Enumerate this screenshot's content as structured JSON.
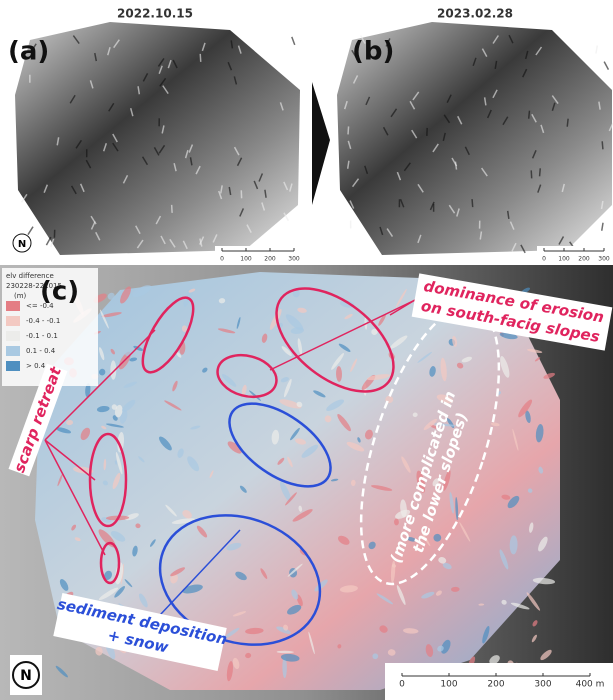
{
  "panels": [
    {
      "label": "(a)",
      "date": "2022.10.15",
      "north": "N",
      "scale": [
        "0",
        "100",
        "200",
        "300"
      ]
    },
    {
      "label": "(b)",
      "date": "2023.02.28",
      "scale": [
        "0",
        "100",
        "200",
        "300"
      ]
    }
  ],
  "panel_c": {
    "label": "(c)",
    "north": "N",
    "legend": {
      "title": "elv difference",
      "subtitle": "230228-221015",
      "unit": "(m)",
      "items": [
        {
          "label": "<= -0.4",
          "color": "#e47d84"
        },
        {
          "label": "-0.4 - -0.1",
          "color": "#f3c9c2"
        },
        {
          "label": "-0.1 - 0.1",
          "color": "#ececea"
        },
        {
          "label": "0.1 - 0.4",
          "color": "#a9c9e2"
        },
        {
          "label": "> 0.4",
          "color": "#4f8fc0"
        }
      ]
    },
    "annotations": {
      "erosion": [
        "dominance of erosion",
        "on south-facig slopes"
      ],
      "scarp": [
        "scarp retreat"
      ],
      "lower": [
        "(more complicated in",
        "the lower slopes)"
      ],
      "deposition": [
        "sediment deposition",
        "+ snow"
      ]
    },
    "scale": [
      "0",
      "100",
      "200",
      "300",
      "400 m"
    ]
  }
}
